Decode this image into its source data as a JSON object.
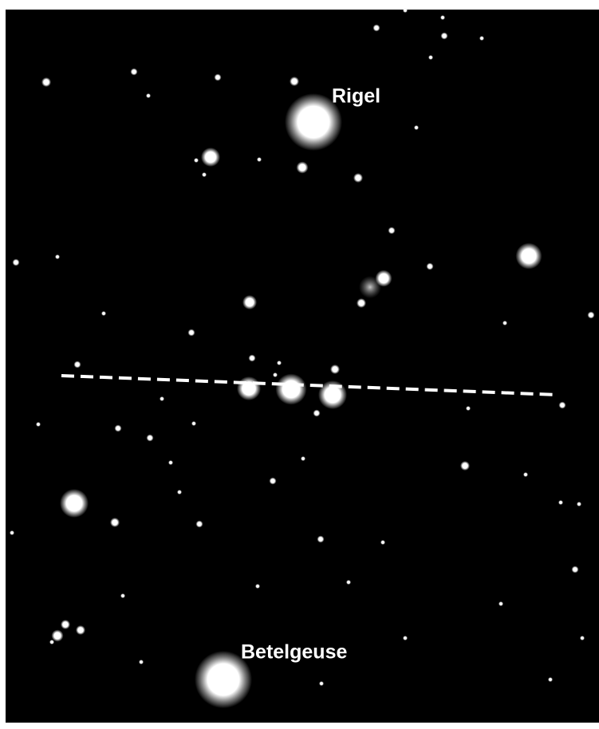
{
  "labels": {
    "rigel": "Rigel",
    "betelgeuse": "Betelgeuse"
  }
}
